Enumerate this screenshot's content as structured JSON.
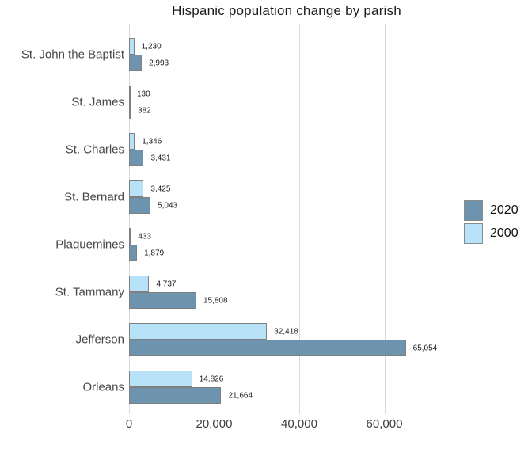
{
  "title": "Hispanic population change by parish",
  "legend": {
    "items": [
      {
        "label": "2020",
        "color": "#6d93ae"
      },
      {
        "label": "2000",
        "color": "#b8e2f8"
      }
    ]
  },
  "colors": {
    "bar_2020": "#6d93ae",
    "bar_2000": "#b8e2f8",
    "bar_border": "#7f7f7f",
    "gridline": "#d9d9d9"
  },
  "chart_data": {
    "type": "bar",
    "orientation": "horizontal",
    "title": "Hispanic population change by parish",
    "xlabel": "",
    "ylabel": "",
    "xlim": [
      0,
      74000
    ],
    "grid": true,
    "legend_position": "right",
    "categories": [
      "St. John the Baptist",
      "St. James",
      "St. Charles",
      "St. Bernard",
      "Plaquemines",
      "St. Tammany",
      "Jefferson",
      "Orleans"
    ],
    "series": [
      {
        "name": "2000",
        "color": "#b8e2f8",
        "values": [
          1230,
          130,
          1346,
          3425,
          433,
          4737,
          32418,
          14826
        ],
        "labels": [
          "1,230",
          "130",
          "1,346",
          "3,425",
          "433",
          "4,737",
          "32,418",
          "14,826"
        ]
      },
      {
        "name": "2020",
        "color": "#6d93ae",
        "values": [
          2993,
          382,
          3431,
          5043,
          1879,
          15808,
          65054,
          21664
        ],
        "labels": [
          "2,993",
          "382",
          "3,431",
          "5,043",
          "1,879",
          "15,808",
          "65,054",
          "21,664"
        ]
      }
    ],
    "x_axis": {
      "tick_values": [
        0,
        20000,
        40000,
        60000
      ],
      "tick_labels": [
        "0",
        "20,000",
        "40,000",
        "60,000"
      ]
    }
  }
}
